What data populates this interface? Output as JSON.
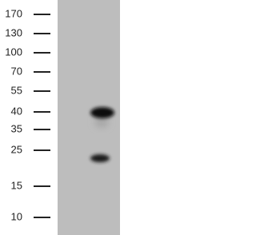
{
  "ladder": {
    "labels": [
      "170",
      "130",
      "100",
      "70",
      "55",
      "40",
      "35",
      "25",
      "15",
      "10"
    ]
  }
}
